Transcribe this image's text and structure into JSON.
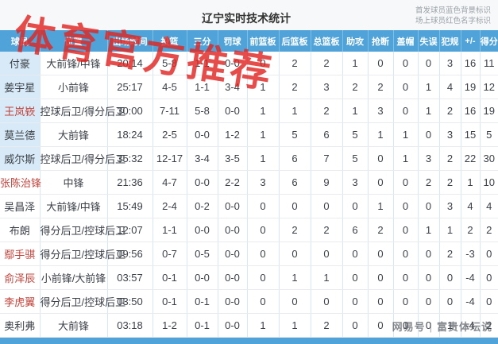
{
  "titlebar": {
    "title": "辽宁实时技术统计",
    "legend_line1": "首发球员蓝色背景标识",
    "legend_line2": "场上球员红色名字标识"
  },
  "watermarks": {
    "top": "体育官方推荐",
    "bottom_left": "网易号",
    "bottom_sep": "|",
    "bottom_right": "富贵体坛说"
  },
  "table": {
    "columns": [
      "球员",
      "位置",
      "出场时间",
      "投篮",
      "三分",
      "罚球",
      "前篮板",
      "后篮板",
      "总篮板",
      "助攻",
      "抢断",
      "盖帽",
      "失误",
      "犯规",
      "+/-",
      "得分"
    ],
    "rows": [
      {
        "name": "付豪",
        "starter": true,
        "on_court": false,
        "position": "大前锋/中锋",
        "stats": [
          "20:14",
          "5-8",
          "1-1",
          "0-0",
          "0",
          "2",
          "2",
          "1",
          "0",
          "0",
          "0",
          "3",
          "16",
          "11"
        ]
      },
      {
        "name": "姜宇星",
        "starter": true,
        "on_court": false,
        "position": "小前锋",
        "stats": [
          "25:17",
          "4-5",
          "1-1",
          "3-4",
          "1",
          "2",
          "3",
          "2",
          "2",
          "0",
          "1",
          "4",
          "19",
          "12"
        ]
      },
      {
        "name": "王岚嵚",
        "starter": true,
        "on_court": true,
        "position": "控球后卫/得分后卫",
        "stats": [
          "30:00",
          "7-11",
          "5-8",
          "0-0",
          "1",
          "1",
          "2",
          "1",
          "3",
          "0",
          "1",
          "2",
          "16",
          "19"
        ]
      },
      {
        "name": "莫兰德",
        "starter": true,
        "on_court": false,
        "position": "大前锋",
        "stats": [
          "18:24",
          "2-5",
          "0-0",
          "1-2",
          "1",
          "5",
          "6",
          "5",
          "1",
          "1",
          "0",
          "3",
          "15",
          "5"
        ]
      },
      {
        "name": "威尔斯",
        "starter": true,
        "on_court": false,
        "position": "控球后卫/得分后卫",
        "stats": [
          "35:32",
          "12-17",
          "3-4",
          "3-5",
          "1",
          "6",
          "7",
          "5",
          "0",
          "1",
          "3",
          "2",
          "22",
          "30"
        ]
      },
      {
        "name": "张陈治锋",
        "starter": false,
        "on_court": true,
        "position": "中锋",
        "stats": [
          "21:36",
          "4-7",
          "0-0",
          "2-2",
          "3",
          "6",
          "9",
          "3",
          "0",
          "0",
          "2",
          "2",
          "1",
          "10"
        ]
      },
      {
        "name": "吴昌泽",
        "starter": false,
        "on_court": false,
        "position": "大前锋/中锋",
        "stats": [
          "15:49",
          "2-4",
          "0-2",
          "0-0",
          "0",
          "0",
          "0",
          "0",
          "1",
          "0",
          "0",
          "3",
          "4",
          "4"
        ]
      },
      {
        "name": "布朗",
        "starter": false,
        "on_court": false,
        "position": "得分后卫/控球后卫",
        "stats": [
          "12:07",
          "1-1",
          "0-0",
          "0-0",
          "0",
          "2",
          "2",
          "6",
          "2",
          "0",
          "1",
          "1",
          "2",
          "2"
        ]
      },
      {
        "name": "鄢手骐",
        "starter": false,
        "on_court": true,
        "position": "得分后卫/控球后卫",
        "stats": [
          "09:56",
          "0-7",
          "0-5",
          "0-0",
          "0",
          "0",
          "0",
          "0",
          "0",
          "0",
          "0",
          "2",
          "-3",
          "0"
        ]
      },
      {
        "name": "俞泽辰",
        "starter": false,
        "on_court": true,
        "position": "小前锋/大前锋",
        "stats": [
          "03:57",
          "0-1",
          "0-0",
          "0-0",
          "0",
          "1",
          "1",
          "0",
          "0",
          "0",
          "0",
          "0",
          "-4",
          "0"
        ]
      },
      {
        "name": "李虎翼",
        "starter": false,
        "on_court": true,
        "position": "得分后卫/控球后卫",
        "stats": [
          "03:50",
          "0-1",
          "0-1",
          "0-0",
          "0",
          "0",
          "0",
          "0",
          "0",
          "0",
          "0",
          "0",
          "-4",
          "0"
        ]
      },
      {
        "name": "奥利弗",
        "starter": false,
        "on_court": false,
        "position": "大前锋",
        "stats": [
          "03:18",
          "1-2",
          "0-1",
          "0-0",
          "1",
          "1",
          "2",
          "0",
          "0",
          "0",
          "0",
          "1",
          "-4",
          "2"
        ]
      }
    ]
  },
  "colors": {
    "header_bg": "#4fa3d9",
    "starter_cell_bg": "#d8eaf7",
    "oncourt_name": "#c2423a",
    "watermark_red": "rgba(224,38,34,0.82)",
    "bottom_bar": "#4fa3d9"
  }
}
